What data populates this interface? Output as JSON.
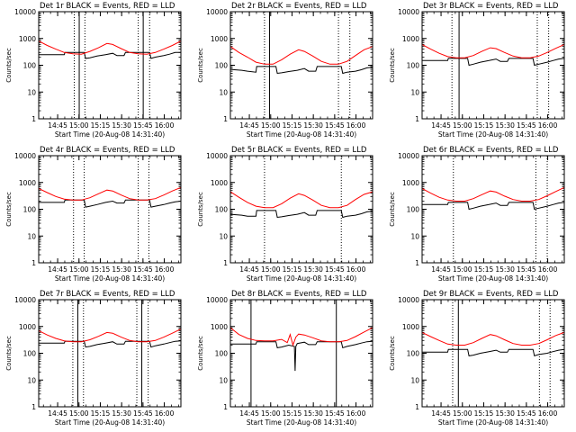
{
  "page": {
    "width": 640,
    "height": 480
  },
  "colors": {
    "events": "#000000",
    "lld": "#ff0000",
    "axes": "#000000",
    "background": "#ffffff"
  },
  "shared": {
    "x_tick_labels": [
      "14:45",
      "15:00",
      "15:15",
      "15:30",
      "15:45",
      "16:00"
    ],
    "x_tick_minutes": [
      13.33,
      28.33,
      43.33,
      58.33,
      73.33,
      88.33
    ],
    "x_range_minutes": [
      0,
      100
    ],
    "x_label": "Start Time (20-Aug-08 14:31:40)",
    "y_label": "Counts/sec",
    "y_tick_labels": [
      "1",
      "10",
      "100",
      "1000",
      "10000"
    ],
    "y_range": [
      1,
      10000
    ],
    "y_scale": "log",
    "legend_text": "BLACK = Events, RED = LLD"
  },
  "chart_data": [
    {
      "type": "line",
      "title": "Det 1r BLACK = Events, RED = LLD",
      "solid_vlines_min": [
        28.5,
        73.5
      ],
      "dotted_vlines_min": [
        25,
        32.5,
        70,
        78
      ],
      "series": [
        {
          "name": "Events",
          "color": "#000000",
          "x_min": [
            0,
            8,
            12,
            18,
            18.5,
            26,
            32,
            33,
            36,
            41,
            47,
            52,
            55,
            60,
            61,
            63,
            72,
            78,
            79,
            82,
            88,
            92,
            96,
            100
          ],
          "values": [
            250,
            250,
            250,
            250,
            300,
            300,
            300,
            180,
            190,
            220,
            250,
            280,
            230,
            230,
            300,
            300,
            300,
            300,
            180,
            200,
            230,
            260,
            300,
            300
          ]
        },
        {
          "name": "LLD",
          "color": "#ff0000",
          "x_min": [
            0,
            6,
            12,
            18,
            24,
            30,
            36,
            42,
            48,
            52,
            58,
            64,
            70,
            76,
            82,
            88,
            94,
            100
          ],
          "values": [
            800,
            550,
            400,
            300,
            270,
            260,
            330,
            450,
            650,
            600,
            420,
            300,
            270,
            260,
            300,
            400,
            550,
            800
          ]
        }
      ]
    },
    {
      "type": "line",
      "title": "Det 2r BLACK = Events, RED = LLD",
      "solid_vlines_min": [
        27.5
      ],
      "dotted_vlines_min": [
        24,
        76,
        84
      ],
      "series": [
        {
          "name": "Events",
          "color": "#000000",
          "x_min": [
            0,
            8,
            12,
            18,
            18.5,
            26,
            32,
            33,
            36,
            41,
            47,
            52,
            55,
            60,
            61,
            63,
            72,
            78,
            79,
            82,
            88,
            92,
            96,
            100
          ],
          "values": [
            70,
            65,
            60,
            55,
            90,
            90,
            90,
            50,
            52,
            58,
            65,
            75,
            60,
            60,
            90,
            90,
            90,
            90,
            50,
            55,
            60,
            68,
            80,
            85
          ]
        },
        {
          "name": "LLD",
          "color": "#ff0000",
          "x_min": [
            0,
            6,
            12,
            18,
            24,
            30,
            36,
            42,
            48,
            52,
            58,
            64,
            70,
            76,
            82,
            88,
            94,
            100
          ],
          "values": [
            500,
            300,
            200,
            130,
            110,
            110,
            160,
            260,
            380,
            330,
            220,
            140,
            110,
            110,
            140,
            230,
            380,
            500
          ]
        }
      ]
    },
    {
      "type": "line",
      "title": "Det 3r BLACK = Events, RED = LLD",
      "solid_vlines_min": [
        26
      ],
      "dotted_vlines_min": [
        21,
        81,
        89
      ],
      "series": [
        {
          "name": "Events",
          "color": "#000000",
          "x_min": [
            0,
            8,
            12,
            18,
            18.5,
            26,
            32,
            33,
            36,
            41,
            47,
            52,
            55,
            60,
            61,
            63,
            72,
            78,
            79,
            82,
            88,
            92,
            96,
            100
          ],
          "values": [
            150,
            150,
            150,
            150,
            180,
            180,
            180,
            100,
            110,
            130,
            150,
            170,
            140,
            140,
            180,
            180,
            180,
            180,
            100,
            110,
            130,
            150,
            170,
            180
          ]
        },
        {
          "name": "LLD",
          "color": "#ff0000",
          "x_min": [
            0,
            6,
            12,
            18,
            24,
            30,
            36,
            42,
            48,
            52,
            58,
            64,
            70,
            76,
            82,
            88,
            94,
            100
          ],
          "values": [
            600,
            400,
            280,
            210,
            190,
            190,
            230,
            330,
            450,
            420,
            300,
            220,
            190,
            190,
            220,
            300,
            430,
            600
          ]
        }
      ]
    },
    {
      "type": "line",
      "title": "Det 4r BLACK = Events, RED = LLD",
      "solid_vlines_min": [],
      "dotted_vlines_min": [
        24.5,
        32,
        70,
        77.5
      ],
      "series": [
        {
          "name": "Events",
          "color": "#000000",
          "x_min": [
            0,
            8,
            12,
            18,
            18.5,
            26,
            32,
            33,
            36,
            41,
            47,
            52,
            55,
            60,
            61,
            63,
            72,
            78,
            79,
            82,
            88,
            92,
            96,
            100
          ],
          "values": [
            180,
            180,
            180,
            180,
            220,
            220,
            220,
            120,
            130,
            150,
            180,
            200,
            170,
            170,
            220,
            220,
            220,
            220,
            120,
            130,
            150,
            170,
            190,
            200
          ]
        },
        {
          "name": "LLD",
          "color": "#ff0000",
          "x_min": [
            0,
            6,
            12,
            18,
            24,
            30,
            36,
            42,
            48,
            52,
            58,
            64,
            70,
            76,
            82,
            88,
            94,
            100
          ],
          "values": [
            600,
            420,
            300,
            240,
            220,
            220,
            270,
            380,
            520,
            480,
            340,
            250,
            220,
            220,
            250,
            340,
            480,
            650
          ]
        }
      ]
    },
    {
      "type": "line",
      "title": "Det 5r BLACK = Events, RED = LLD",
      "solid_vlines_min": [],
      "dotted_vlines_min": [
        24,
        78
      ],
      "series": [
        {
          "name": "Events",
          "color": "#000000",
          "x_min": [
            0,
            8,
            12,
            18,
            18.5,
            26,
            32,
            33,
            36,
            41,
            47,
            52,
            55,
            60,
            61,
            63,
            72,
            78,
            79,
            82,
            88,
            92,
            96,
            100
          ],
          "values": [
            65,
            60,
            55,
            55,
            90,
            90,
            90,
            50,
            52,
            58,
            65,
            75,
            60,
            60,
            90,
            90,
            90,
            90,
            50,
            55,
            60,
            68,
            80,
            85
          ]
        },
        {
          "name": "LLD",
          "color": "#ff0000",
          "x_min": [
            0,
            6,
            12,
            18,
            24,
            30,
            36,
            42,
            48,
            52,
            58,
            64,
            70,
            76,
            82,
            88,
            94,
            100
          ],
          "values": [
            450,
            280,
            180,
            130,
            115,
            115,
            160,
            260,
            380,
            330,
            220,
            140,
            115,
            115,
            140,
            230,
            360,
            450
          ]
        }
      ]
    },
    {
      "type": "line",
      "title": "Det 6r BLACK = Events, RED = LLD",
      "solid_vlines_min": [],
      "dotted_vlines_min": [
        22,
        80,
        88
      ],
      "series": [
        {
          "name": "Events",
          "color": "#000000",
          "x_min": [
            0,
            8,
            12,
            18,
            18.5,
            26,
            32,
            33,
            36,
            41,
            47,
            52,
            55,
            60,
            61,
            63,
            72,
            78,
            79,
            82,
            88,
            92,
            96,
            100
          ],
          "values": [
            150,
            150,
            150,
            150,
            180,
            180,
            180,
            100,
            110,
            130,
            150,
            170,
            140,
            140,
            180,
            180,
            180,
            180,
            100,
            110,
            130,
            150,
            170,
            180
          ]
        },
        {
          "name": "LLD",
          "color": "#ff0000",
          "x_min": [
            0,
            6,
            12,
            18,
            24,
            30,
            36,
            42,
            48,
            52,
            58,
            64,
            70,
            76,
            82,
            88,
            94,
            100
          ],
          "values": [
            600,
            400,
            280,
            220,
            200,
            200,
            250,
            350,
            480,
            440,
            310,
            230,
            200,
            200,
            230,
            320,
            460,
            650
          ]
        }
      ]
    },
    {
      "type": "line",
      "title": "Det 7r BLACK = Events, RED = LLD",
      "solid_vlines_min": [
        27.5,
        72.5
      ],
      "dotted_vlines_min": [
        24,
        31.5,
        69,
        77
      ],
      "series": [
        {
          "name": "Events",
          "color": "#000000",
          "x_min": [
            0,
            8,
            12,
            18,
            18.5,
            26,
            32,
            33,
            36,
            41,
            47,
            52,
            55,
            60,
            61,
            63,
            72,
            78,
            79,
            82,
            88,
            92,
            96,
            100
          ],
          "values": [
            240,
            240,
            240,
            240,
            280,
            280,
            280,
            170,
            180,
            210,
            240,
            270,
            220,
            220,
            280,
            280,
            280,
            280,
            170,
            190,
            220,
            250,
            280,
            290
          ]
        },
        {
          "name": "LLD",
          "color": "#ff0000",
          "x_min": [
            0,
            6,
            12,
            18,
            24,
            30,
            36,
            42,
            48,
            52,
            58,
            64,
            70,
            76,
            82,
            88,
            94,
            100
          ],
          "values": [
            700,
            480,
            360,
            290,
            270,
            270,
            320,
            430,
            600,
            560,
            400,
            300,
            270,
            270,
            300,
            400,
            560,
            800
          ]
        }
      ]
    },
    {
      "type": "line",
      "title": "Det 8r BLACK = Events, RED = LLD",
      "solid_vlines_min": [
        14.5,
        74.5
      ],
      "dotted_vlines_min": [],
      "series": [
        {
          "name": "Events",
          "color": "#000000",
          "x_min": [
            0,
            8,
            12,
            18,
            18.5,
            26,
            32,
            33,
            36,
            41,
            45,
            45.5,
            46,
            47,
            52,
            55,
            60,
            61,
            63,
            72,
            78,
            79,
            82,
            88,
            92,
            96,
            100
          ],
          "values": [
            220,
            220,
            220,
            220,
            270,
            270,
            270,
            160,
            170,
            200,
            180,
            22,
            180,
            230,
            260,
            210,
            210,
            270,
            270,
            270,
            270,
            160,
            180,
            210,
            240,
            270,
            280
          ]
        },
        {
          "name": "LLD",
          "color": "#ff0000",
          "x_min": [
            0,
            6,
            12,
            18,
            24,
            30,
            36,
            40,
            42,
            44,
            46,
            48,
            52,
            58,
            64,
            70,
            76,
            82,
            88,
            94,
            100
          ],
          "values": [
            900,
            500,
            360,
            300,
            290,
            290,
            330,
            250,
            500,
            200,
            400,
            520,
            480,
            380,
            290,
            270,
            270,
            300,
            420,
            620,
            900
          ]
        }
      ]
    },
    {
      "type": "line",
      "title": "Det 9r BLACK = Events, RED = LLD",
      "solid_vlines_min": [
        25.5
      ],
      "dotted_vlines_min": [
        21.5,
        82.5,
        90
      ],
      "series": [
        {
          "name": "Events",
          "color": "#000000",
          "x_min": [
            0,
            8,
            12,
            18,
            18.5,
            26,
            32,
            33,
            36,
            41,
            47,
            52,
            55,
            60,
            61,
            63,
            72,
            78,
            79,
            82,
            88,
            92,
            96,
            100
          ],
          "values": [
            110,
            110,
            110,
            110,
            140,
            140,
            140,
            80,
            85,
            100,
            115,
            130,
            110,
            110,
            140,
            140,
            140,
            140,
            80,
            90,
            100,
            115,
            130,
            140
          ]
        },
        {
          "name": "LLD",
          "color": "#ff0000",
          "x_min": [
            0,
            6,
            12,
            18,
            24,
            30,
            36,
            42,
            48,
            52,
            58,
            64,
            70,
            76,
            82,
            88,
            94,
            100
          ],
          "values": [
            600,
            420,
            300,
            220,
            200,
            200,
            250,
            360,
            500,
            450,
            320,
            230,
            200,
            200,
            230,
            320,
            460,
            600
          ]
        }
      ]
    }
  ]
}
